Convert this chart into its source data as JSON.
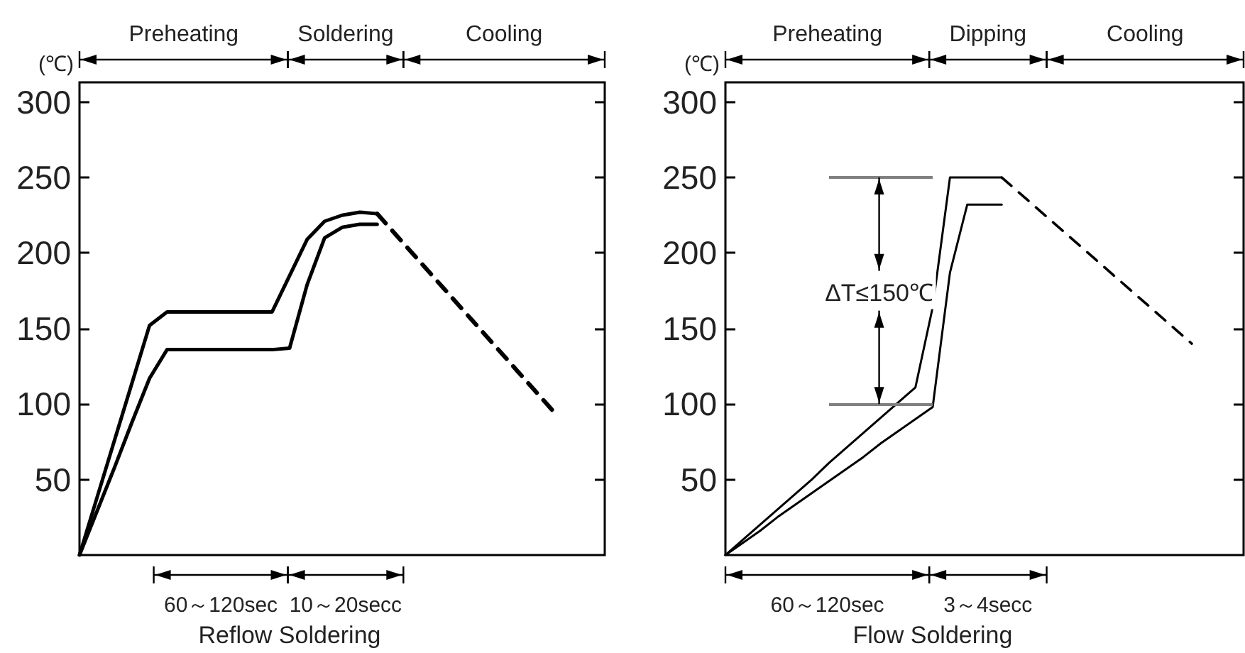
{
  "chart_data": [
    {
      "type": "line",
      "xlabel": "Reflow Soldering",
      "ylabel": "(℃)",
      "categories": [
        null,
        null,
        null,
        null,
        null,
        null,
        null,
        null,
        null,
        null,
        null,
        null,
        null,
        null,
        null,
        null,
        null,
        null,
        null,
        null,
        null,
        null,
        null,
        null,
        null,
        null,
        null,
        null,
        null,
        null,
        null
      ],
      "series": [
        {
          "color": "#000000",
          "values": [
            0,
            38,
            76,
            114,
            152,
            161,
            161,
            161,
            161,
            161,
            161,
            161,
            185,
            209,
            221,
            225,
            227,
            226,
            null,
            null,
            null,
            null,
            null,
            null,
            null,
            null,
            null,
            null,
            null,
            null,
            null
          ]
        },
        {
          "color": "#000000",
          "values": [
            0,
            29,
            58,
            88,
            117,
            136,
            136,
            136,
            136,
            136,
            136,
            136,
            137,
            179,
            210,
            217,
            219,
            219,
            null,
            null,
            null,
            null,
            null,
            null,
            null,
            null,
            null,
            null,
            null,
            null,
            null
          ]
        },
        {
          "color": "#000000",
          "line_style": "dashed",
          "values": [
            null,
            null,
            null,
            null,
            null,
            null,
            null,
            null,
            null,
            null,
            null,
            null,
            null,
            null,
            null,
            null,
            null,
            226,
            213,
            200,
            187,
            174,
            161,
            148,
            135,
            122,
            109,
            96,
            null,
            null,
            null
          ]
        }
      ],
      "ylim": [
        0,
        313
      ],
      "yticks": [
        50,
        100,
        150,
        200,
        250,
        300
      ],
      "grid": false,
      "marker": "none",
      "line_style": "solid",
      "tick_labels": "y",
      "annotations": [
        "Preheating",
        "Soldering",
        "Cooling",
        "60～120sec",
        "10～20secc"
      ]
    },
    {
      "type": "line",
      "xlabel": "Flow Soldering",
      "ylabel": "(℃)",
      "categories": [
        null,
        null,
        null,
        null,
        null,
        null,
        null,
        null,
        null,
        null,
        null,
        null,
        null,
        null,
        null,
        null,
        null,
        null,
        null,
        null,
        null,
        null,
        null,
        null,
        null,
        null,
        null,
        null,
        null,
        null,
        null
      ],
      "series": [
        {
          "color": "#000000",
          "values": [
            0,
            10,
            20,
            30,
            40,
            50,
            61,
            71,
            81,
            91,
            101,
            111,
            164,
            250,
            250,
            250,
            250,
            null,
            null,
            null,
            null,
            null,
            null,
            null,
            null,
            null,
            null,
            null,
            null,
            null,
            null
          ]
        },
        {
          "color": "#000000",
          "values": [
            0,
            8,
            16,
            25,
            33,
            41,
            49,
            57,
            65,
            74,
            82,
            90,
            98,
            187,
            232,
            232,
            232,
            null,
            null,
            null,
            null,
            null,
            null,
            null,
            null,
            null,
            null,
            null,
            null,
            null,
            null
          ]
        },
        {
          "color": "#000000",
          "line_style": "dashed",
          "values": [
            null,
            null,
            null,
            null,
            null,
            null,
            null,
            null,
            null,
            null,
            null,
            null,
            null,
            null,
            null,
            null,
            250,
            240,
            230,
            220,
            210,
            200,
            190,
            180,
            170,
            160,
            150,
            140,
            null,
            null,
            null
          ]
        }
      ],
      "ylim": [
        0,
        313
      ],
      "yticks": [
        50,
        100,
        150,
        200,
        250,
        300
      ],
      "grid": false,
      "marker": "none",
      "line_style": "solid",
      "tick_labels": "y",
      "ref_lines": [
        {
          "axis": "y",
          "value": 250,
          "color": "#808080"
        },
        {
          "axis": "y",
          "value": 100,
          "color": "#808080"
        }
      ],
      "annotations": [
        "Preheating",
        "Dipping",
        "Cooling",
        "60～120sec",
        "3～4secc",
        "ΔT≤150℃"
      ]
    }
  ]
}
